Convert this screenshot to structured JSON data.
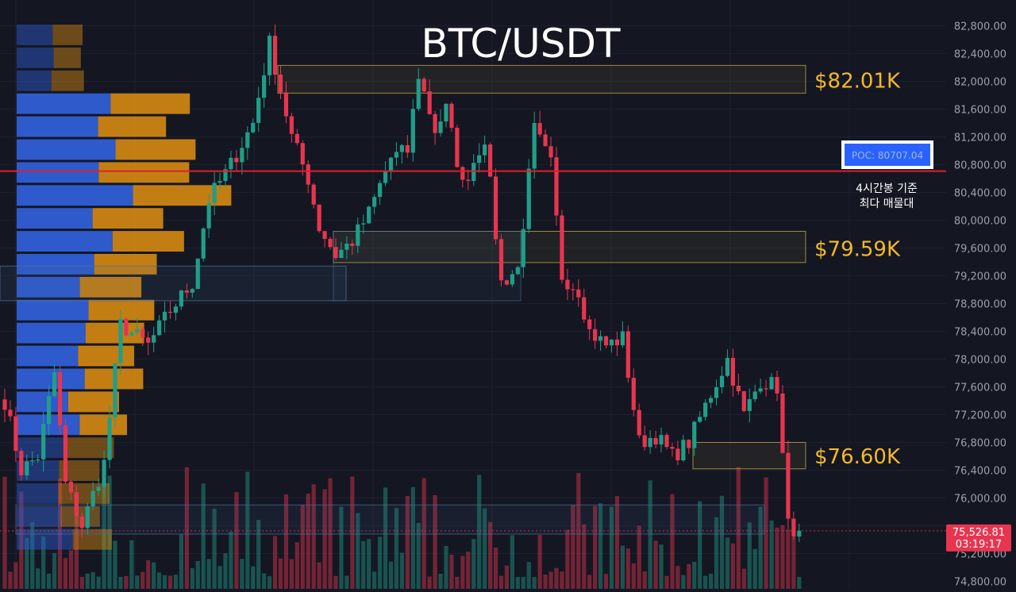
{
  "title": "BTC/USDT",
  "colors": {
    "background": "#141722",
    "up": "#1f9e89",
    "down": "#e8354f",
    "poc_line": "#e01e2e",
    "poc_box": "#2962ff",
    "zone_yellow": "#d4b84a",
    "zone_blue": "#4c6e9a",
    "level_text": "#f5b82a",
    "vp_buy": "#2f5ed6",
    "vp_sell": "#d68a12"
  },
  "price_axis": {
    "ticks": [
      "82,800.00",
      "82,400.00",
      "82,000.00",
      "81,600.00",
      "81,200.00",
      "80,800.00",
      "80,400.00",
      "80,000.00",
      "79,600.00",
      "79,200.00",
      "78,800.00",
      "78,400.00",
      "78,000.00",
      "77,600.00",
      "77,200.00",
      "76,800.00",
      "76,400.00",
      "76,000.00",
      "75,200.00",
      "74,800.00"
    ],
    "last_price": "75,526.81",
    "countdown": "03:19:17"
  },
  "levels": [
    {
      "text": "$82.01K",
      "price": 82010
    },
    {
      "text": "$79.59K",
      "price": 79590
    },
    {
      "text": "$76.60K",
      "price": 76600
    }
  ],
  "poc": {
    "label": "POC: 80707.04",
    "value": 80707.04,
    "note_line1": "4시간봉 기준",
    "note_line2": "최다 매물대"
  },
  "chart_data": {
    "type": "candlestick",
    "title": "BTC/USDT",
    "ylim": [
      74700,
      83050
    ],
    "candle_count": 145,
    "volume_profile_bins": 23,
    "poc": 80707.04,
    "last_price": 75526.81,
    "zones": [
      {
        "label": "$82.01K",
        "low": 81830,
        "high": 82230
      },
      {
        "label": "$79.59K",
        "low": 79390,
        "high": 79840
      },
      {
        "label": "$76.60K",
        "low": 76420,
        "high": 76800
      }
    ],
    "key_path": [
      {
        "i": 0,
        "p": 77400
      },
      {
        "i": 3,
        "p": 76400
      },
      {
        "i": 6,
        "p": 76600
      },
      {
        "i": 9,
        "p": 77800
      },
      {
        "i": 11,
        "p": 76200
      },
      {
        "i": 14,
        "p": 75600
      },
      {
        "i": 18,
        "p": 76500
      },
      {
        "i": 21,
        "p": 78500
      },
      {
        "i": 26,
        "p": 78200
      },
      {
        "i": 30,
        "p": 78700
      },
      {
        "i": 34,
        "p": 79100
      },
      {
        "i": 37,
        "p": 80300
      },
      {
        "i": 41,
        "p": 80800
      },
      {
        "i": 45,
        "p": 81400
      },
      {
        "i": 48,
        "p": 82550
      },
      {
        "i": 52,
        "p": 81200
      },
      {
        "i": 55,
        "p": 80600
      },
      {
        "i": 57,
        "p": 79900
      },
      {
        "i": 60,
        "p": 79500
      },
      {
        "i": 63,
        "p": 79700
      },
      {
        "i": 66,
        "p": 80100
      },
      {
        "i": 70,
        "p": 80900
      },
      {
        "i": 73,
        "p": 81000
      },
      {
        "i": 75,
        "p": 82100
      },
      {
        "i": 78,
        "p": 81300
      },
      {
        "i": 80,
        "p": 81600
      },
      {
        "i": 83,
        "p": 80500
      },
      {
        "i": 87,
        "p": 81200
      },
      {
        "i": 90,
        "p": 79100
      },
      {
        "i": 93,
        "p": 79300
      },
      {
        "i": 96,
        "p": 81300
      },
      {
        "i": 99,
        "p": 80800
      },
      {
        "i": 101,
        "p": 79200
      },
      {
        "i": 104,
        "p": 79000
      },
      {
        "i": 106,
        "p": 78400
      },
      {
        "i": 109,
        "p": 78200
      },
      {
        "i": 112,
        "p": 78300
      },
      {
        "i": 115,
        "p": 76800
      },
      {
        "i": 118,
        "p": 76900
      },
      {
        "i": 121,
        "p": 76600
      },
      {
        "i": 124,
        "p": 76800
      },
      {
        "i": 128,
        "p": 77500
      },
      {
        "i": 131,
        "p": 78000
      },
      {
        "i": 134,
        "p": 77200
      },
      {
        "i": 137,
        "p": 77700
      },
      {
        "i": 140,
        "p": 77600
      },
      {
        "i": 142,
        "p": 75600
      },
      {
        "i": 144,
        "p": 75530
      }
    ]
  }
}
